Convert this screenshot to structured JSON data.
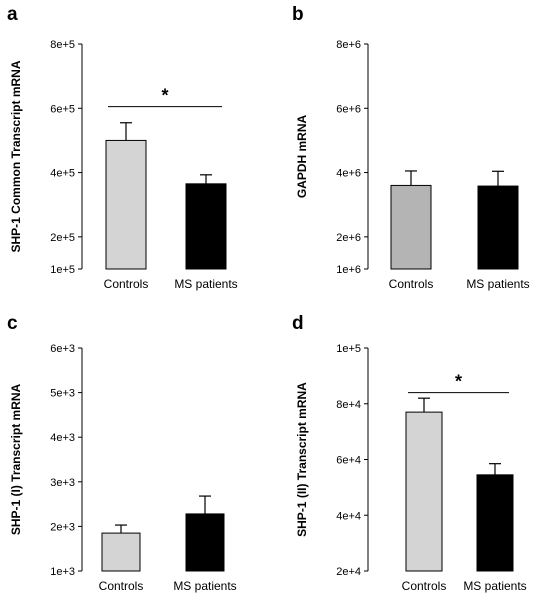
{
  "chart_data": [
    {
      "panel": "a",
      "type": "bar",
      "ylabel": "SHP-1 Common Transcript mRNA",
      "categories": [
        "Controls",
        "MS patients"
      ],
      "values": [
        500000,
        365000
      ],
      "errors": [
        55000,
        28000
      ],
      "ylim": [
        100000,
        800000
      ],
      "yticks": [
        100000,
        200000,
        400000,
        600000,
        800000
      ],
      "ytick_labels": [
        "1e+5",
        "2e+5",
        "4e+5",
        "6e+5",
        "8e+5"
      ],
      "bar_colors": [
        "#d4d4d4",
        "#000000"
      ],
      "significance": "*",
      "sig_level": 605000
    },
    {
      "panel": "b",
      "type": "bar",
      "ylabel": "GAPDH mRNA",
      "categories": [
        "Controls",
        "MS patients"
      ],
      "values": [
        3600000,
        3580000
      ],
      "errors": [
        450000,
        460000
      ],
      "ylim": [
        1000000,
        8000000
      ],
      "yticks": [
        1000000,
        2000000,
        4000000,
        6000000,
        8000000
      ],
      "ytick_labels": [
        "1e+6",
        "2e+6",
        "4e+6",
        "6e+6",
        "8e+6"
      ],
      "bar_colors": [
        "#b4b4b4",
        "#000000"
      ],
      "significance": ""
    },
    {
      "panel": "c",
      "type": "bar",
      "ylabel": "SHP-1 (I) Transcript mRNA",
      "categories": [
        "Controls",
        "MS patients"
      ],
      "values": [
        1850,
        2280
      ],
      "errors": [
        180,
        400
      ],
      "ylim": [
        1000,
        6000
      ],
      "yticks": [
        1000,
        2000,
        3000,
        4000,
        5000,
        6000
      ],
      "ytick_labels": [
        "1e+3",
        "2e+3",
        "3e+3",
        "4e+3",
        "5e+3",
        "6e+3"
      ],
      "bar_colors": [
        "#d4d4d4",
        "#000000"
      ],
      "significance": ""
    },
    {
      "panel": "d",
      "type": "bar",
      "ylabel": "SHP-1 (II) Transcript mRNA",
      "categories": [
        "Controls",
        "MS patients"
      ],
      "values": [
        77000,
        54500
      ],
      "errors": [
        5000,
        4000
      ],
      "ylim": [
        20000,
        100000
      ],
      "yticks": [
        20000,
        40000,
        60000,
        80000,
        100000
      ],
      "ytick_labels": [
        "2e+4",
        "4e+4",
        "6e+4",
        "8e+4",
        "1e+5"
      ],
      "bar_colors": [
        "#d4d4d4",
        "#000000"
      ],
      "significance": "*",
      "sig_level": 84000
    }
  ]
}
